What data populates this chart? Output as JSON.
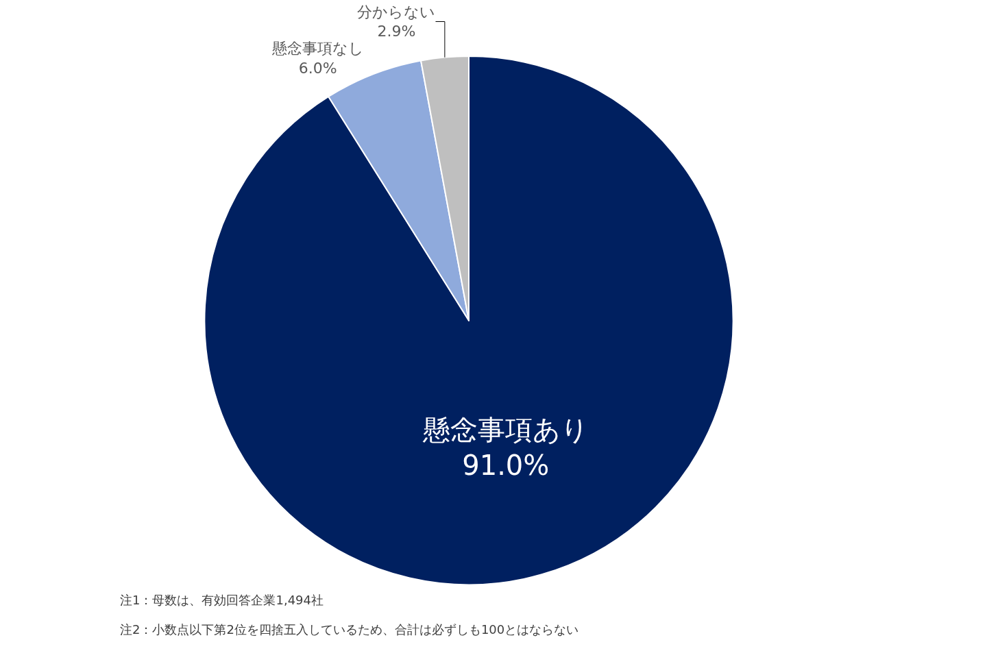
{
  "chart_data": {
    "type": "pie",
    "categories": [
      "懸念事項あり",
      "懸念事項なし",
      "分からない"
    ],
    "values": [
      91.0,
      6.0,
      2.9
    ],
    "value_labels": [
      "91.0%",
      "6.0%",
      "2.9%"
    ],
    "colors": [
      "#002060",
      "#8faadc",
      "#bfbfbf"
    ],
    "annotations": [
      "注1：母数は、有効回答企業1,494社",
      "注2：小数点以下第2位を四捨五入しているため、合計は必ずしも100とはならない"
    ]
  }
}
